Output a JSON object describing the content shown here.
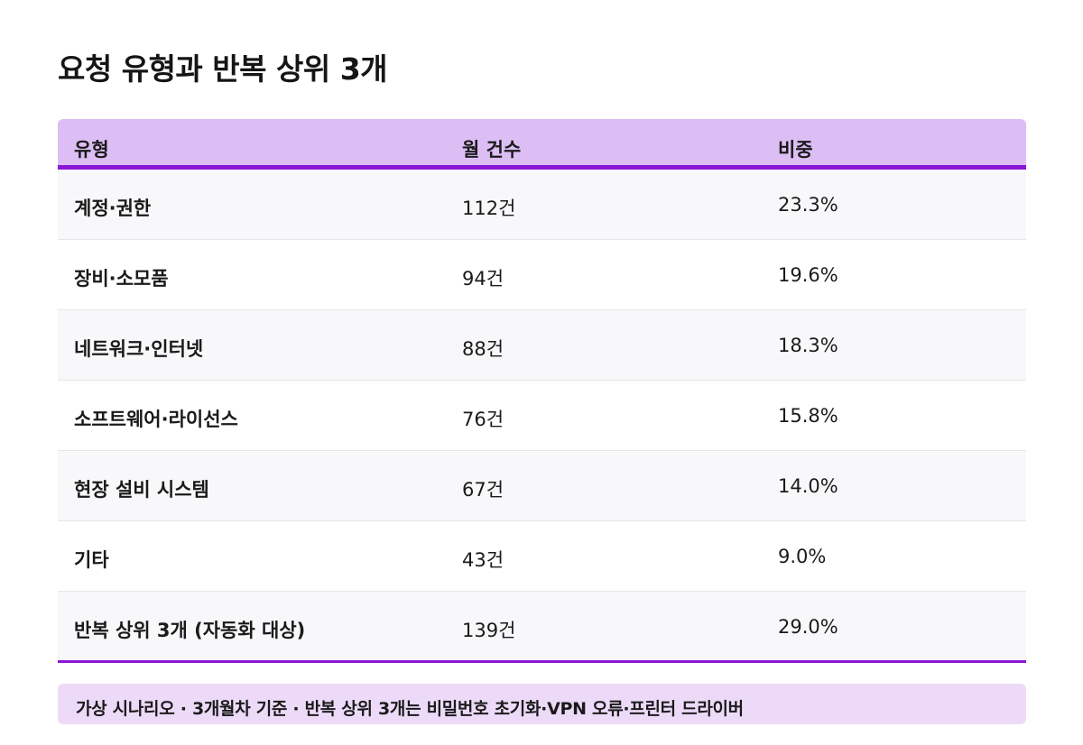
{
  "title": "요청 유형과 반복 상위 3개",
  "table": {
    "headers": [
      "유형",
      "월 건수",
      "비중"
    ],
    "rows": [
      {
        "type": "계정·권한",
        "count": "112건",
        "share": "23.3%"
      },
      {
        "type": "장비·소모품",
        "count": "94건",
        "share": "19.6%"
      },
      {
        "type": "네트워크·인터넷",
        "count": "88건",
        "share": "18.3%"
      },
      {
        "type": "소프트웨어·라이선스",
        "count": "76건",
        "share": "15.8%"
      },
      {
        "type": "현장 설비 시스템",
        "count": "67건",
        "share": "14.0%"
      },
      {
        "type": "기타",
        "count": "43건",
        "share": "9.0%"
      },
      {
        "type": "반복 상위 3개 (자동화 대상)",
        "count": "139건",
        "share": "29.0%"
      }
    ]
  },
  "footnote": "가상 시나리오 · 3개월차 기준 · 반복 상위 3개는 비밀번호 초기화·VPN 오류·프린터 드라이버"
}
